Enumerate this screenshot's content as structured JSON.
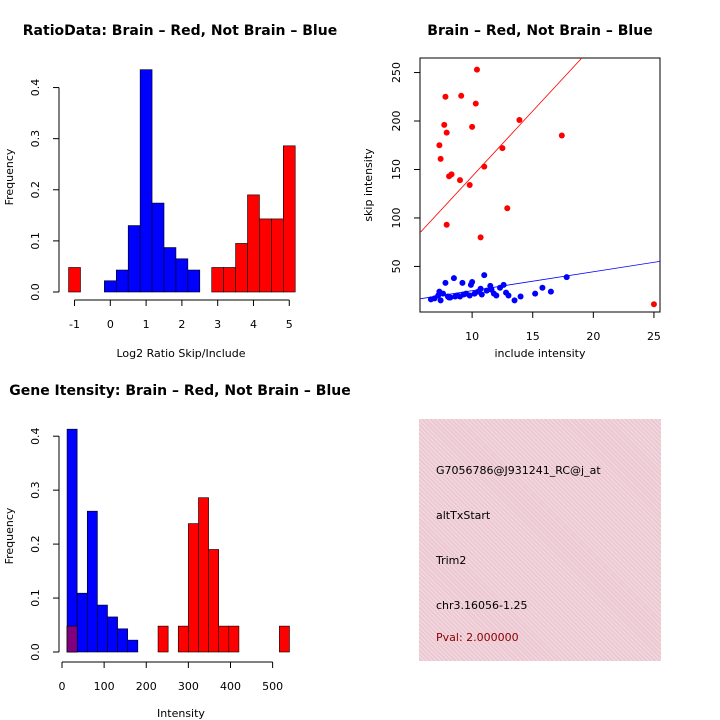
{
  "chart_data": [
    {
      "type": "bar",
      "title": "RatioData: Brain – Red, Not Brain – Blue",
      "xlabel": "Log2 Ratio Skip/Include",
      "ylabel": "Frequency",
      "xlim": [
        -1.35,
        5.3
      ],
      "ylim": [
        0,
        0.45
      ],
      "xticks": [
        -1,
        0,
        1,
        2,
        3,
        4,
        5
      ],
      "yticks": [
        0.0,
        0.1,
        0.2,
        0.3,
        0.4
      ],
      "bin_width": 0.3333,
      "series": [
        {
          "name": "Not Brain",
          "color": "#0000ff",
          "bins": [
            {
              "start": -0.1667,
              "value": 0.022
            },
            {
              "start": 0.1667,
              "value": 0.043
            },
            {
              "start": 0.5,
              "value": 0.13
            },
            {
              "start": 0.8333,
              "value": 0.435
            },
            {
              "start": 1.1667,
              "value": 0.174
            },
            {
              "start": 1.5,
              "value": 0.087
            },
            {
              "start": 1.8333,
              "value": 0.065
            },
            {
              "start": 2.1667,
              "value": 0.043
            }
          ]
        },
        {
          "name": "Brain",
          "color": "#ff0000",
          "bins": [
            {
              "start": -1.1667,
              "value": 0.048
            },
            {
              "start": 2.8333,
              "value": 0.048
            },
            {
              "start": 3.1667,
              "value": 0.048
            },
            {
              "start": 3.5,
              "value": 0.095
            },
            {
              "start": 3.8333,
              "value": 0.19
            },
            {
              "start": 4.1667,
              "value": 0.143
            },
            {
              "start": 4.5,
              "value": 0.143
            },
            {
              "start": 4.8333,
              "value": 0.286
            }
          ]
        }
      ]
    },
    {
      "type": "scatter",
      "title": "Brain – Red, Not Brain – Blue",
      "xlabel": "include intensity",
      "ylabel": "skip intensity",
      "xlim": [
        5.7,
        25.5
      ],
      "ylim": [
        3,
        265
      ],
      "xticks": [
        10,
        15,
        20,
        25
      ],
      "yticks": [
        50,
        100,
        150,
        200,
        250
      ],
      "series": [
        {
          "name": "Brain",
          "color": "#ff0000",
          "fit": {
            "intercept": 7.8,
            "slope": 13.5
          },
          "x": [
            10.4,
            7.8,
            9.1,
            10.3,
            7.7,
            7.9,
            10.0,
            13.9,
            7.3,
            7.4,
            17.4,
            12.5,
            11.0,
            8.3,
            8.1,
            9.0,
            9.8,
            7.9,
            12.9,
            10.7,
            25.0
          ],
          "y": [
            253,
            225,
            226,
            218,
            196,
            188,
            194,
            201,
            175,
            161,
            185,
            172,
            153,
            145,
            143,
            139,
            134,
            93,
            110,
            80,
            11
          ]
        },
        {
          "name": "Not Brain",
          "color": "#0000ff",
          "fit": {
            "intercept": 5.5,
            "slope": 1.95
          },
          "x": [
            6.6,
            6.9,
            7.2,
            7.4,
            7.6,
            7.8,
            8.0,
            8.2,
            8.5,
            8.8,
            9.0,
            9.2,
            9.5,
            9.8,
            10.0,
            10.2,
            10.5,
            10.8,
            11.0,
            11.2,
            11.5,
            11.8,
            12.0,
            12.3,
            12.6,
            13.0,
            13.5,
            14.0,
            15.2,
            15.8,
            16.5,
            17.8,
            7.3,
            8.1,
            9.3,
            10.7,
            11.6,
            12.8,
            8.6,
            9.9
          ],
          "y": [
            16,
            17,
            20,
            15,
            22,
            33,
            19,
            18,
            38,
            20,
            19,
            33,
            22,
            20,
            34,
            22,
            24,
            21,
            41,
            25,
            30,
            22,
            20,
            28,
            31,
            20,
            15,
            19,
            22,
            28,
            24,
            39,
            24,
            18,
            21,
            27,
            26,
            23,
            19,
            31
          ]
        }
      ]
    },
    {
      "type": "bar",
      "title": "Gene Itensity: Brain – Red, Not Brain – Blue",
      "xlabel": "Intensity",
      "ylabel": "Frequency",
      "xlim": [
        0,
        565
      ],
      "ylim": [
        0,
        0.43
      ],
      "xticks": [
        0,
        100,
        200,
        300,
        400,
        500
      ],
      "yticks": [
        0.0,
        0.1,
        0.2,
        0.3,
        0.4
      ],
      "bin_width": 24,
      "overlap_color": "#800080",
      "series": [
        {
          "name": "Not Brain",
          "color": "#0000ff",
          "bins": [
            {
              "start": 12,
              "value": 0.413
            },
            {
              "start": 36,
              "value": 0.109
            },
            {
              "start": 60,
              "value": 0.261
            },
            {
              "start": 84,
              "value": 0.087
            },
            {
              "start": 108,
              "value": 0.065
            },
            {
              "start": 132,
              "value": 0.043
            },
            {
              "start": 156,
              "value": 0.022
            }
          ]
        },
        {
          "name": "Brain",
          "color": "#ff0000",
          "bins": [
            {
              "start": 12,
              "value": 0.048
            },
            {
              "start": 228,
              "value": 0.048
            },
            {
              "start": 276,
              "value": 0.048
            },
            {
              "start": 300,
              "value": 0.238
            },
            {
              "start": 324,
              "value": 0.286
            },
            {
              "start": 348,
              "value": 0.19
            },
            {
              "start": 372,
              "value": 0.048
            },
            {
              "start": 396,
              "value": 0.048
            },
            {
              "start": 516,
              "value": 0.048
            }
          ]
        }
      ]
    }
  ],
  "info": {
    "probe": "G7056786@J931241_RC@j_at",
    "event_type": "altTxStart",
    "gene": "Trim2",
    "location": "chr3.16056-1.25",
    "pval": "Pval: 2.000000"
  },
  "colors": {
    "brain": "#ff0000",
    "not_brain": "#0000ff",
    "overlap": "#800080",
    "info_bg": "#ecc8d2",
    "pval": "#8b0000"
  }
}
